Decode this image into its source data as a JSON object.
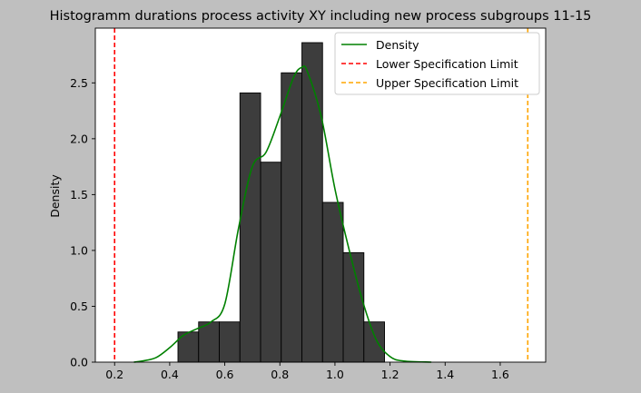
{
  "chart_data": {
    "type": "histogram",
    "title": "Histogramm durations process activity XY including new process subgroups 11-15",
    "xlabel": "",
    "ylabel": "Density",
    "xlim": [
      0.13,
      1.765
    ],
    "ylim": [
      0,
      2.99
    ],
    "x_ticks": [
      0.2,
      0.4,
      0.6,
      0.8,
      1.0,
      1.2,
      1.4,
      1.6
    ],
    "x_tick_labels": [
      "0.2",
      "0.4",
      "0.6",
      "0.8",
      "1.0",
      "1.2",
      "1.4",
      "1.6"
    ],
    "y_ticks": [
      0.0,
      0.5,
      1.0,
      1.5,
      2.0,
      2.5
    ],
    "y_tick_labels": [
      "0.0",
      "0.5",
      "1.0",
      "1.5",
      "2.0",
      "2.5"
    ],
    "grid": false,
    "legend_position": "top-right",
    "bins": [
      {
        "x0": 0.43,
        "x1": 0.505,
        "density": 0.27
      },
      {
        "x0": 0.505,
        "x1": 0.58,
        "density": 0.36
      },
      {
        "x0": 0.58,
        "x1": 0.655,
        "density": 0.36
      },
      {
        "x0": 0.655,
        "x1": 0.73,
        "density": 2.41
      },
      {
        "x0": 0.73,
        "x1": 0.805,
        "density": 1.79
      },
      {
        "x0": 0.805,
        "x1": 0.88,
        "density": 2.59
      },
      {
        "x0": 0.88,
        "x1": 0.955,
        "density": 2.86
      },
      {
        "x0": 0.955,
        "x1": 1.03,
        "density": 1.43
      },
      {
        "x0": 1.03,
        "x1": 1.105,
        "density": 0.98
      },
      {
        "x0": 1.105,
        "x1": 1.18,
        "density": 0.36
      }
    ],
    "density_curve": {
      "name": "Density",
      "color": "#008000",
      "points": [
        [
          0.27,
          0.0
        ],
        [
          0.3,
          0.01
        ],
        [
          0.35,
          0.04
        ],
        [
          0.4,
          0.13
        ],
        [
          0.45,
          0.24
        ],
        [
          0.5,
          0.3
        ],
        [
          0.55,
          0.36
        ],
        [
          0.6,
          0.52
        ],
        [
          0.65,
          1.2
        ],
        [
          0.7,
          1.75
        ],
        [
          0.75,
          1.88
        ],
        [
          0.8,
          2.2
        ],
        [
          0.85,
          2.55
        ],
        [
          0.88,
          2.64
        ],
        [
          0.9,
          2.6
        ],
        [
          0.95,
          2.2
        ],
        [
          1.0,
          1.55
        ],
        [
          1.05,
          1.02
        ],
        [
          1.1,
          0.55
        ],
        [
          1.15,
          0.2
        ],
        [
          1.2,
          0.05
        ],
        [
          1.25,
          0.01
        ],
        [
          1.35,
          0.0
        ]
      ]
    },
    "reference_lines": [
      {
        "name": "Lower Specification Limit",
        "x": 0.2,
        "color": "#ff0000"
      },
      {
        "name": "Upper Specification Limit",
        "x": 1.7,
        "color": "#ffa500"
      }
    ],
    "bar_fill": "#3d3d3d"
  }
}
